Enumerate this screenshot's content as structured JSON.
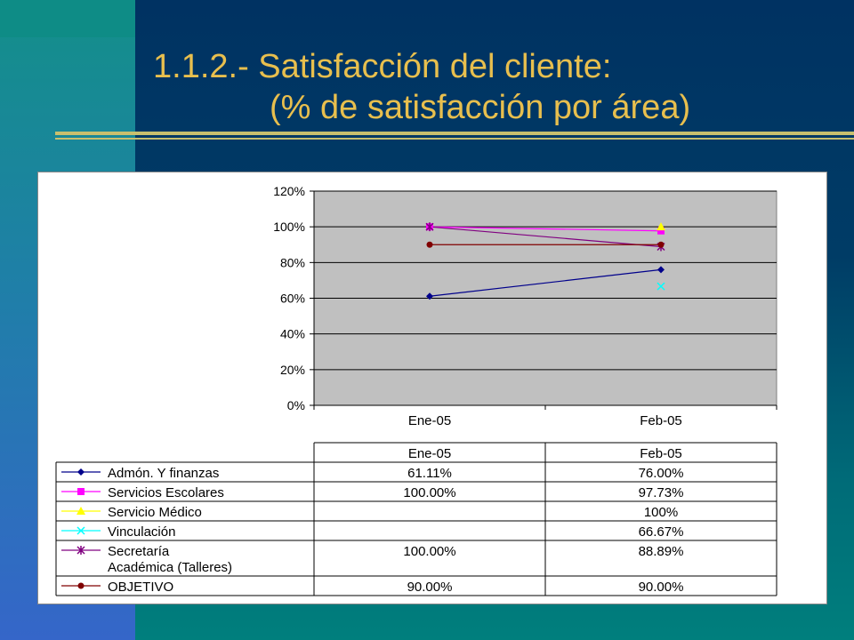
{
  "slide": {
    "title_line1": "1.1.2.- Satisfacción del cliente:",
    "title_line2": "(% de satisfacción por área)"
  },
  "colors": {
    "title": "#e8bf4e",
    "plot_background": "#c0c0c0",
    "slide_background": "#003262"
  },
  "chart_data": {
    "type": "line",
    "title": "",
    "xlabel": "",
    "ylabel": "",
    "categories": [
      "Ene-05",
      "Feb-05"
    ],
    "yticks": [
      "0%",
      "20%",
      "40%",
      "60%",
      "80%",
      "100%",
      "120%"
    ],
    "ylim": [
      0,
      120
    ],
    "grid": true,
    "legend": "data-table-below",
    "series": [
      {
        "name": "Admón. Y finanzas",
        "color": "#00008b",
        "marker": "diamond",
        "values": [
          61.11,
          76.0
        ],
        "labels": [
          "61.11%",
          "76.00%"
        ]
      },
      {
        "name": "Servicios Escolares",
        "color": "#ff00ff",
        "marker": "square",
        "values": [
          100.0,
          97.73
        ],
        "labels": [
          "100.00%",
          "97.73%"
        ]
      },
      {
        "name": "Servicio Médico",
        "color": "#ffff00",
        "marker": "triangle",
        "values": [
          null,
          100.0
        ],
        "labels": [
          "",
          "100%"
        ]
      },
      {
        "name": "Vinculación",
        "color": "#00ffff",
        "marker": "x",
        "values": [
          null,
          66.67
        ],
        "labels": [
          "",
          "66.67%"
        ]
      },
      {
        "name": "Secretaría Académica (Talleres)",
        "name_line1": "Secretaría",
        "name_line2": "Académica (Talleres)",
        "color": "#800080",
        "marker": "star",
        "values": [
          100.0,
          88.89
        ],
        "labels": [
          "100.00%",
          "88.89%"
        ]
      },
      {
        "name": "OBJETIVO",
        "color": "#800000",
        "marker": "circle",
        "values": [
          90.0,
          90.0
        ],
        "labels": [
          "90.00%",
          "90.00%"
        ]
      }
    ]
  }
}
